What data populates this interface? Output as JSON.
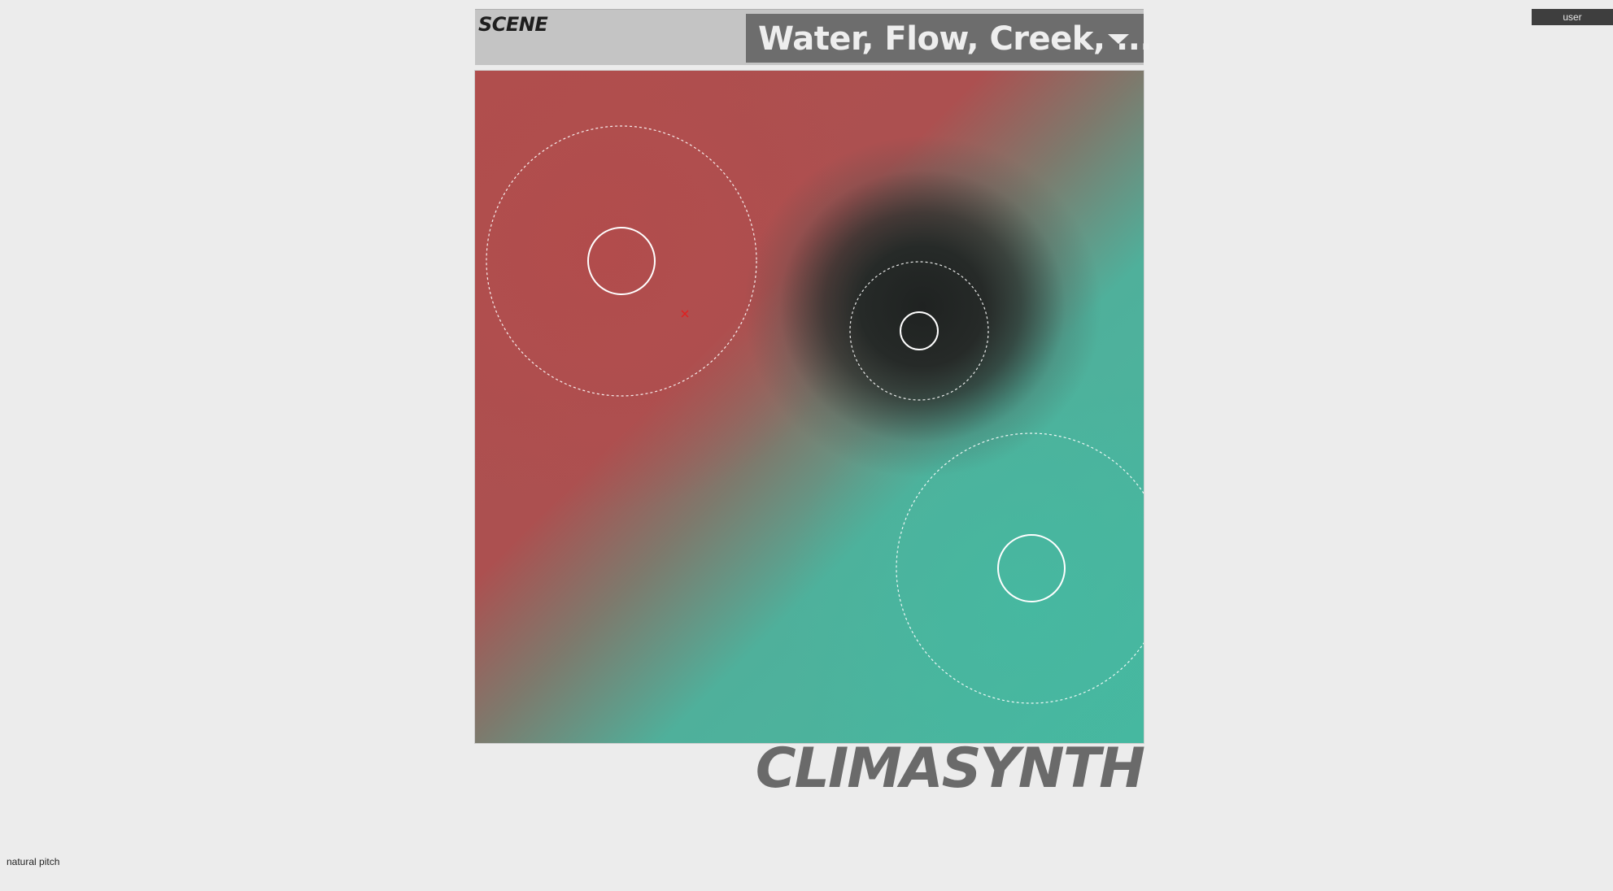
{
  "header": {
    "scene_label": "SCENE",
    "scene_value": "Water, Flow, Creek, ..."
  },
  "brand": {
    "name": "CLIMASYNTH"
  },
  "user_button": {
    "label": "user"
  },
  "status": {
    "mode_text": "natural pitch"
  },
  "colors": {
    "red_zone": "#b04e4d",
    "teal_zone": "#46b8a0",
    "dark_zone": "#1f2221",
    "marker": "#e02020"
  },
  "icons": {
    "select_arrow": "chevron-down-icon",
    "cursor_marker": "cross-marker-icon"
  }
}
